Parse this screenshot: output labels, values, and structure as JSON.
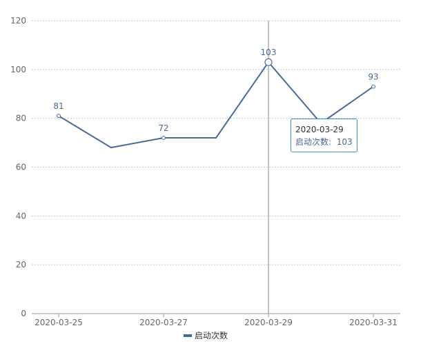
{
  "chart_data": {
    "type": "line",
    "x": [
      "2020-03-25",
      "2020-03-26",
      "2020-03-27",
      "2020-03-28",
      "2020-03-29",
      "2020-03-30",
      "2020-03-31"
    ],
    "series": [
      {
        "name": "启动次数",
        "values": [
          81,
          68,
          72,
          72,
          103,
          78,
          93
        ]
      }
    ],
    "x_tick_labels": [
      "2020-03-25",
      "2020-03-27",
      "2020-03-29",
      "2020-03-31"
    ],
    "y_ticks": [
      0,
      20,
      40,
      60,
      80,
      100,
      120
    ],
    "ylim": [
      0,
      120
    ],
    "data_labels": [
      {
        "x": "2020-03-25",
        "value": 81
      },
      {
        "x": "2020-03-27",
        "value": 72
      },
      {
        "x": "2020-03-29",
        "value": 103
      },
      {
        "x": "2020-03-31",
        "value": 93
      }
    ],
    "grid": "horizontal dashed",
    "legend": "bottom-center",
    "color": "#4a6a96",
    "highlighted": "2020-03-29"
  },
  "tooltip": {
    "title": "2020-03-29",
    "series_label": "启动次数:",
    "value": "103"
  }
}
